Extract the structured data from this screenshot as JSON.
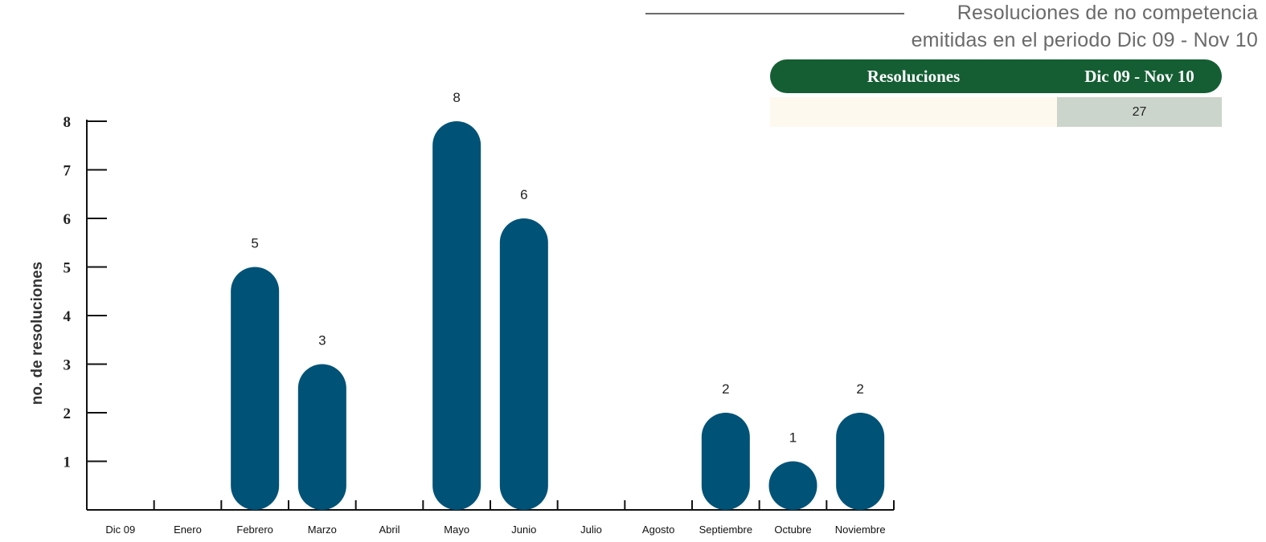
{
  "header": {
    "title_line1": "Resoluciones de no competencia",
    "title_line2": "emitidas en el periodo Dic 09 - Nov 10"
  },
  "summary_table": {
    "col1_header": "Resoluciones",
    "col2_header": "Dic 09 - Nov 10",
    "row": {
      "label": "",
      "value": "27"
    },
    "header_color": "#155e34",
    "value_cell_color": "#ccd5cb",
    "label_cell_color": "#fdf9ef"
  },
  "chart_data": {
    "type": "bar",
    "title": "",
    "xlabel": "",
    "ylabel": "no. de resoluciones",
    "categories": [
      "Dic 09",
      "Enero",
      "Febrero",
      "Marzo",
      "Abril",
      "Mayo",
      "Junio",
      "Julio",
      "Agosto",
      "Septiembre",
      "Octubre",
      "Noviembre"
    ],
    "values": [
      0,
      0,
      5,
      3,
      0,
      8,
      6,
      0,
      0,
      2,
      1,
      2
    ],
    "yticks": [
      1,
      2,
      3,
      4,
      5,
      6,
      7,
      8
    ],
    "ylim": [
      0,
      8
    ],
    "bar_color": "#005277",
    "grid": false,
    "data_labels": true
  }
}
